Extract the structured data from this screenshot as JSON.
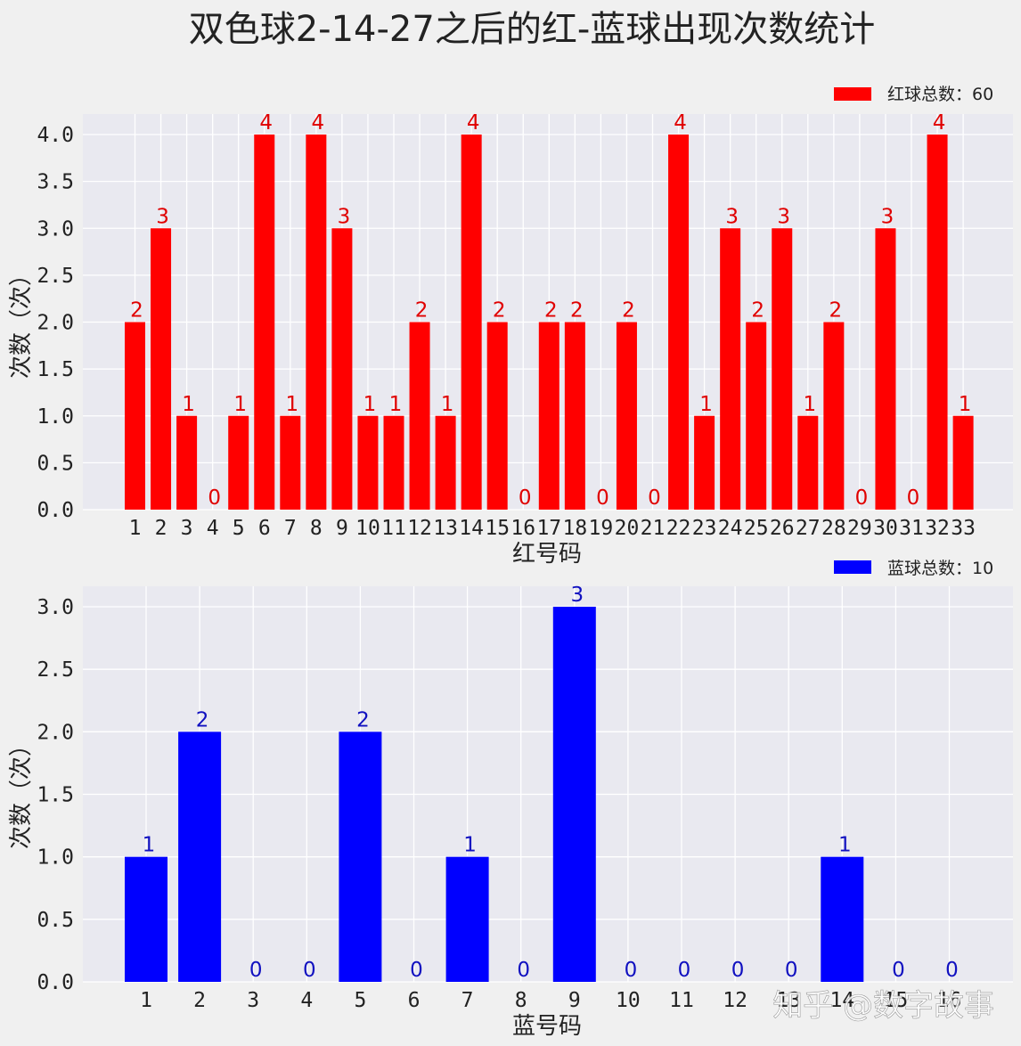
{
  "title": "双色球2-14-27之后的红-蓝球出现次数统计",
  "watermark": "知乎 @数字故事",
  "chart_data": [
    {
      "type": "bar",
      "xlabel": "红号码",
      "ylabel": "次数（次）",
      "categories": [
        "1",
        "2",
        "3",
        "4",
        "5",
        "6",
        "7",
        "8",
        "9",
        "10",
        "11",
        "12",
        "13",
        "14",
        "15",
        "16",
        "17",
        "18",
        "19",
        "20",
        "21",
        "22",
        "23",
        "24",
        "25",
        "26",
        "27",
        "28",
        "29",
        "30",
        "31",
        "32",
        "33"
      ],
      "series": [
        {
          "name": "红球总数：60",
          "color": "#ff0000",
          "label_color": "#e00000",
          "values": [
            2,
            3,
            1,
            0,
            1,
            4,
            1,
            4,
            3,
            1,
            1,
            2,
            1,
            4,
            2,
            0,
            2,
            2,
            0,
            2,
            0,
            4,
            1,
            3,
            2,
            3,
            1,
            2,
            0,
            3,
            0,
            4,
            1
          ]
        }
      ],
      "ylim": [
        0,
        4.2
      ],
      "yticks": [
        "0.0",
        "0.5",
        "1.0",
        "1.5",
        "2.0",
        "2.5",
        "3.0",
        "3.5",
        "4.0"
      ],
      "grid": true,
      "legend_position": "top-right"
    },
    {
      "type": "bar",
      "xlabel": "蓝号码",
      "ylabel": "次数（次）",
      "categories": [
        "1",
        "2",
        "3",
        "4",
        "5",
        "6",
        "7",
        "8",
        "9",
        "10",
        "11",
        "12",
        "13",
        "14",
        "15",
        "16"
      ],
      "series": [
        {
          "name": "蓝球总数：10",
          "color": "#0000ff",
          "label_color": "#1010c0",
          "values": [
            1,
            2,
            0,
            0,
            2,
            0,
            1,
            0,
            3,
            0,
            0,
            0,
            0,
            1,
            0,
            0
          ]
        }
      ],
      "ylim": [
        0,
        3.15
      ],
      "yticks": [
        "0.0",
        "0.5",
        "1.0",
        "1.5",
        "2.0",
        "2.5",
        "3.0"
      ],
      "grid": true,
      "legend_position": "top-right"
    }
  ]
}
